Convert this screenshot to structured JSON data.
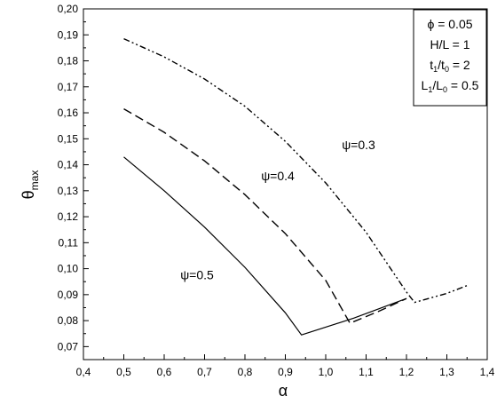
{
  "chart_data": {
    "type": "line",
    "xlabel": "α",
    "ylabel": "θ",
    "ylabel_sub": "max",
    "xlim": [
      0.4,
      1.4
    ],
    "ylim": [
      0.065,
      0.2
    ],
    "x_ticks": [
      "0,4",
      "0,5",
      "0,6",
      "0,7",
      "0,8",
      "0,9",
      "1,0",
      "1,1",
      "1,2",
      "1,3",
      "1,4"
    ],
    "y_ticks": [
      "0,07",
      "0,08",
      "0,09",
      "0,10",
      "0,11",
      "0,12",
      "0,13",
      "0,14",
      "0,15",
      "0,16",
      "0,17",
      "0,18",
      "0,19",
      "0,20"
    ],
    "grid": false,
    "legend_box": {
      "placement": "top-right",
      "lines": [
        {
          "main": "ϕ = 0.05"
        },
        {
          "main": "H/L = 1"
        },
        {
          "parts": [
            [
              "t",
              "base"
            ],
            [
              "1",
              "sub"
            ],
            [
              "/t",
              "base"
            ],
            [
              "0",
              "sub"
            ],
            [
              " = 2",
              "base"
            ]
          ]
        },
        {
          "parts": [
            [
              "L",
              "base"
            ],
            [
              "1",
              "sub"
            ],
            [
              "/L",
              "base"
            ],
            [
              "0",
              "sub"
            ],
            [
              " = 0.5",
              "base"
            ]
          ]
        }
      ]
    },
    "series": [
      {
        "name": "ψ=0.3",
        "style": "dash-dot-dot",
        "points": [
          [
            0.5,
            0.1885
          ],
          [
            0.6,
            0.1815
          ],
          [
            0.7,
            0.173
          ],
          [
            0.8,
            0.1625
          ],
          [
            0.9,
            0.149
          ],
          [
            1.0,
            0.133
          ],
          [
            1.1,
            0.114
          ],
          [
            1.2,
            0.091
          ],
          [
            1.22,
            0.087
          ],
          [
            1.3,
            0.0905
          ],
          [
            1.35,
            0.0935
          ]
        ],
        "label": "ψ=0.3",
        "label_at": [
          1.04,
          0.146
        ]
      },
      {
        "name": "ψ=0.4",
        "style": "dashed",
        "points": [
          [
            0.5,
            0.1615
          ],
          [
            0.6,
            0.1525
          ],
          [
            0.7,
            0.1415
          ],
          [
            0.8,
            0.1285
          ],
          [
            0.9,
            0.1135
          ],
          [
            1.0,
            0.0955
          ],
          [
            1.06,
            0.079
          ],
          [
            1.13,
            0.0835
          ],
          [
            1.2,
            0.0885
          ]
        ],
        "label": "ψ=0.4",
        "label_at": [
          0.84,
          0.134
        ]
      },
      {
        "name": "ψ=0.5",
        "style": "solid",
        "points": [
          [
            0.5,
            0.143
          ],
          [
            0.6,
            0.13
          ],
          [
            0.7,
            0.116
          ],
          [
            0.8,
            0.1005
          ],
          [
            0.9,
            0.083
          ],
          [
            0.94,
            0.0745
          ],
          [
            1.07,
            0.081
          ],
          [
            1.2,
            0.0885
          ]
        ],
        "label": "ψ=0.5",
        "label_at": [
          0.64,
          0.096
        ]
      }
    ]
  }
}
